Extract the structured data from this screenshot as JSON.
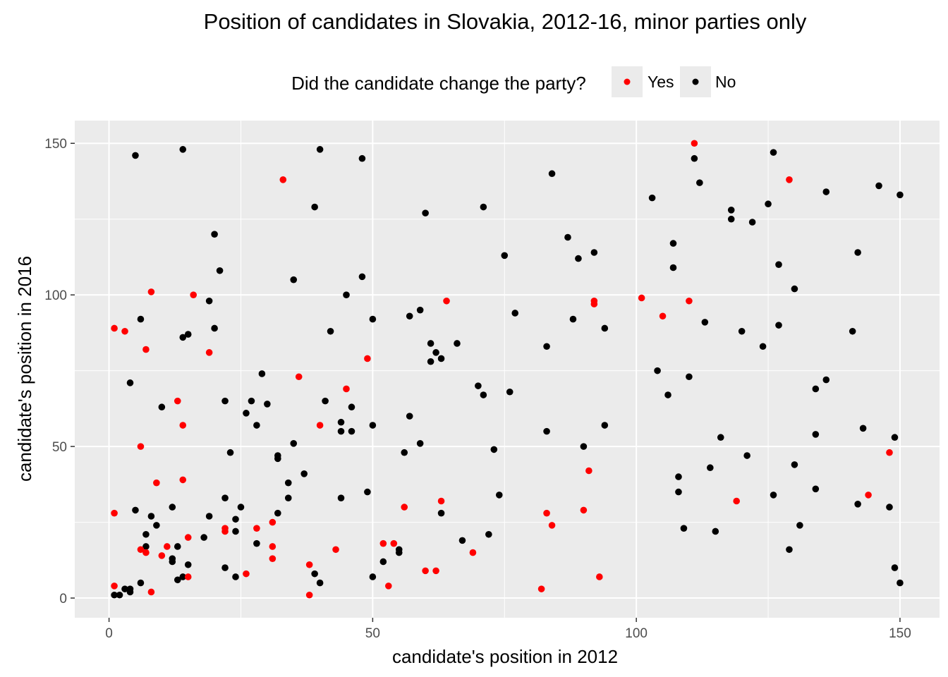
{
  "chart_data": {
    "type": "scatter",
    "title": "Position of candidates in Slovakia, 2012-16, minor parties only",
    "xlabel": "candidate's position in 2012",
    "ylabel": "candidate's position in 2016",
    "xlim": [
      -6.5,
      157.5
    ],
    "ylim": [
      -6.5,
      157.5
    ],
    "x_ticks": [
      0,
      50,
      100,
      150
    ],
    "y_ticks": [
      0,
      50,
      100,
      150
    ],
    "grid": true,
    "legend": {
      "title": "Did the candidate change the party?",
      "placement": "top",
      "entries": [
        {
          "label": "Yes",
          "color": "#ff0000"
        },
        {
          "label": "No",
          "color": "#000000"
        }
      ]
    },
    "series": [
      {
        "name": "Yes",
        "color": "#ff0000",
        "points": [
          [
            1,
            89
          ],
          [
            3,
            88
          ],
          [
            1,
            28
          ],
          [
            1,
            4
          ],
          [
            6,
            50
          ],
          [
            6,
            16
          ],
          [
            7,
            82
          ],
          [
            7,
            15
          ],
          [
            8,
            101
          ],
          [
            8,
            2
          ],
          [
            9,
            38
          ],
          [
            10,
            14
          ],
          [
            11,
            17
          ],
          [
            13,
            65
          ],
          [
            14,
            57
          ],
          [
            14,
            39
          ],
          [
            15,
            20
          ],
          [
            15,
            7
          ],
          [
            16,
            100
          ],
          [
            19,
            81
          ],
          [
            22,
            23
          ],
          [
            22,
            22
          ],
          [
            26,
            8
          ],
          [
            28,
            23
          ],
          [
            31,
            25
          ],
          [
            31,
            17
          ],
          [
            31,
            13
          ],
          [
            33,
            138
          ],
          [
            36,
            73
          ],
          [
            38,
            11
          ],
          [
            38,
            1
          ],
          [
            40,
            57
          ],
          [
            43,
            16
          ],
          [
            45,
            69
          ],
          [
            49,
            79
          ],
          [
            52,
            18
          ],
          [
            53,
            4
          ],
          [
            54,
            18
          ],
          [
            56,
            30
          ],
          [
            60,
            9
          ],
          [
            62,
            9
          ],
          [
            63,
            32
          ],
          [
            64,
            98
          ],
          [
            69,
            15
          ],
          [
            82,
            3
          ],
          [
            83,
            28
          ],
          [
            84,
            24
          ],
          [
            90,
            29
          ],
          [
            91,
            42
          ],
          [
            92,
            98
          ],
          [
            92,
            97
          ],
          [
            93,
            7
          ],
          [
            101,
            99
          ],
          [
            105,
            93
          ],
          [
            110,
            98
          ],
          [
            111,
            150
          ],
          [
            119,
            32
          ],
          [
            129,
            138
          ],
          [
            144,
            34
          ],
          [
            148,
            48
          ]
        ]
      },
      {
        "name": "No",
        "color": "#000000",
        "points": [
          [
            5,
            146
          ],
          [
            14,
            148
          ],
          [
            40,
            148
          ],
          [
            48,
            145
          ],
          [
            84,
            140
          ],
          [
            20,
            120
          ],
          [
            39,
            129
          ],
          [
            60,
            127
          ],
          [
            71,
            129
          ],
          [
            21,
            108
          ],
          [
            35,
            105
          ],
          [
            48,
            106
          ],
          [
            19,
            98
          ],
          [
            20,
            89
          ],
          [
            14,
            86
          ],
          [
            15,
            87
          ],
          [
            6,
            92
          ],
          [
            4,
            71
          ],
          [
            10,
            63
          ],
          [
            12,
            30
          ],
          [
            5,
            29
          ],
          [
            8,
            27
          ],
          [
            9,
            24
          ],
          [
            7,
            21
          ],
          [
            7,
            17
          ],
          [
            6,
            5
          ],
          [
            1,
            1
          ],
          [
            2,
            1
          ],
          [
            3,
            3
          ],
          [
            4,
            2
          ],
          [
            4,
            3
          ],
          [
            12,
            12
          ],
          [
            12,
            13
          ],
          [
            13,
            6
          ],
          [
            14,
            7
          ],
          [
            13,
            17
          ],
          [
            15,
            11
          ],
          [
            18,
            20
          ],
          [
            19,
            27
          ],
          [
            22,
            33
          ],
          [
            22,
            65
          ],
          [
            22,
            10
          ],
          [
            23,
            48
          ],
          [
            24,
            26
          ],
          [
            24,
            22
          ],
          [
            24,
            7
          ],
          [
            25,
            30
          ],
          [
            26,
            61
          ],
          [
            27,
            65
          ],
          [
            28,
            57
          ],
          [
            28,
            18
          ],
          [
            29,
            74
          ],
          [
            30,
            64
          ],
          [
            32,
            47
          ],
          [
            32,
            46
          ],
          [
            32,
            28
          ],
          [
            34,
            38
          ],
          [
            34,
            33
          ],
          [
            35,
            51
          ],
          [
            37,
            41
          ],
          [
            39,
            8
          ],
          [
            40,
            5
          ],
          [
            41,
            65
          ],
          [
            42,
            88
          ],
          [
            44,
            58
          ],
          [
            44,
            55
          ],
          [
            44,
            33
          ],
          [
            45,
            100
          ],
          [
            46,
            63
          ],
          [
            46,
            55
          ],
          [
            49,
            35
          ],
          [
            50,
            92
          ],
          [
            50,
            57
          ],
          [
            50,
            7
          ],
          [
            52,
            12
          ],
          [
            55,
            16
          ],
          [
            55,
            15
          ],
          [
            56,
            48
          ],
          [
            57,
            93
          ],
          [
            57,
            60
          ],
          [
            59,
            95
          ],
          [
            59,
            51
          ],
          [
            61,
            84
          ],
          [
            61,
            78
          ],
          [
            62,
            81
          ],
          [
            63,
            79
          ],
          [
            63,
            28
          ],
          [
            66,
            84
          ],
          [
            67,
            19
          ],
          [
            70,
            70
          ],
          [
            71,
            67
          ],
          [
            72,
            21
          ],
          [
            73,
            49
          ],
          [
            74,
            34
          ],
          [
            75,
            113
          ],
          [
            76,
            68
          ],
          [
            77,
            94
          ],
          [
            83,
            83
          ],
          [
            83,
            55
          ],
          [
            87,
            119
          ],
          [
            88,
            92
          ],
          [
            89,
            112
          ],
          [
            90,
            50
          ],
          [
            92,
            114
          ],
          [
            94,
            89
          ],
          [
            94,
            57
          ],
          [
            103,
            132
          ],
          [
            104,
            75
          ],
          [
            106,
            67
          ],
          [
            107,
            117
          ],
          [
            107,
            109
          ],
          [
            108,
            40
          ],
          [
            108,
            35
          ],
          [
            109,
            23
          ],
          [
            110,
            73
          ],
          [
            111,
            145
          ],
          [
            112,
            137
          ],
          [
            113,
            91
          ],
          [
            114,
            43
          ],
          [
            115,
            22
          ],
          [
            116,
            53
          ],
          [
            118,
            128
          ],
          [
            118,
            125
          ],
          [
            120,
            88
          ],
          [
            121,
            47
          ],
          [
            122,
            124
          ],
          [
            124,
            83
          ],
          [
            125,
            130
          ],
          [
            126,
            147
          ],
          [
            126,
            34
          ],
          [
            127,
            110
          ],
          [
            127,
            90
          ],
          [
            129,
            16
          ],
          [
            130,
            102
          ],
          [
            130,
            44
          ],
          [
            131,
            24
          ],
          [
            134,
            69
          ],
          [
            134,
            54
          ],
          [
            134,
            36
          ],
          [
            136,
            134
          ],
          [
            136,
            72
          ],
          [
            141,
            88
          ],
          [
            142,
            114
          ],
          [
            142,
            31
          ],
          [
            143,
            56
          ],
          [
            146,
            136
          ],
          [
            148,
            30
          ],
          [
            149,
            53
          ],
          [
            149,
            10
          ],
          [
            150,
            133
          ],
          [
            150,
            5
          ]
        ]
      }
    ]
  }
}
